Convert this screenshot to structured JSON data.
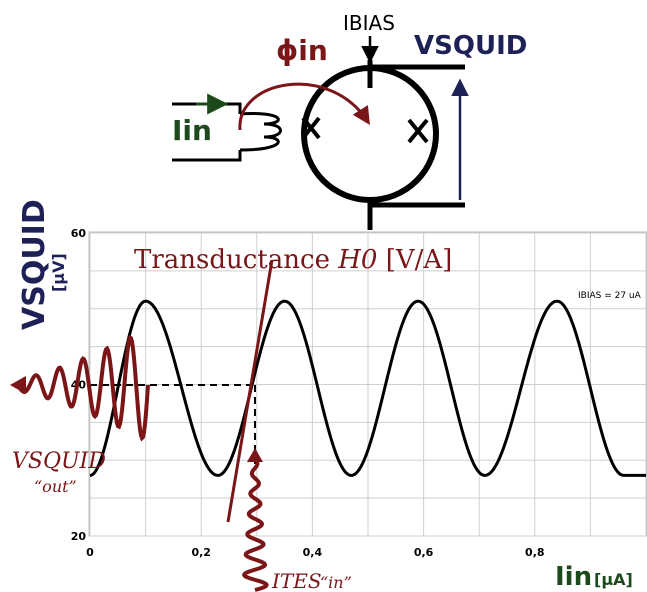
{
  "circuit": {
    "bias_label": "IBIAS",
    "flux_label": "ϕin",
    "input_label": "Iin",
    "output_label": "VSQUID"
  },
  "plot": {
    "ylabel_main": "VSQUID",
    "ylabel_unit": "[µV]",
    "xlabel_main": "Iin",
    "xlabel_unit": "[µA]",
    "yticks": [
      "20",
      "40",
      "60"
    ],
    "xticks": [
      "0",
      "0,2",
      "0,4",
      "0,6",
      "0,8"
    ],
    "bias_note": "IBIAS = 27 uA",
    "transductance_text": "Transductance ",
    "transductance_symbol": "H0",
    "transductance_unit": " [V/A]",
    "vout_label": "VSQUID",
    "vout_sub": "“out”",
    "ites_label": "ITES",
    "ites_sub": "“in”",
    "colors": {
      "curve": "#000000",
      "annotation": "#7a1518",
      "navy": "#1d2156",
      "green": "#1c4a1c"
    }
  },
  "chart_data": {
    "type": "line",
    "xlabel": "Iin [µA]",
    "ylabel": "VSQUID [µV]",
    "xlim": [
      0,
      1.0
    ],
    "ylim": [
      20,
      60
    ],
    "grid": true,
    "series": [
      {
        "x": [
          0.0,
          0.1,
          0.23,
          0.35,
          0.47,
          0.59,
          0.71,
          0.84,
          0.96
        ],
        "y": [
          28,
          51,
          28,
          51,
          28,
          51,
          28,
          51,
          28
        ]
      }
    ],
    "annotations": [
      "Transductance H0 [V/A]",
      "IBIAS = 27 uA",
      "VSQUID “out”",
      "ITES “in”"
    ],
    "operating_point": {
      "x": 0.29,
      "y": 40
    }
  }
}
